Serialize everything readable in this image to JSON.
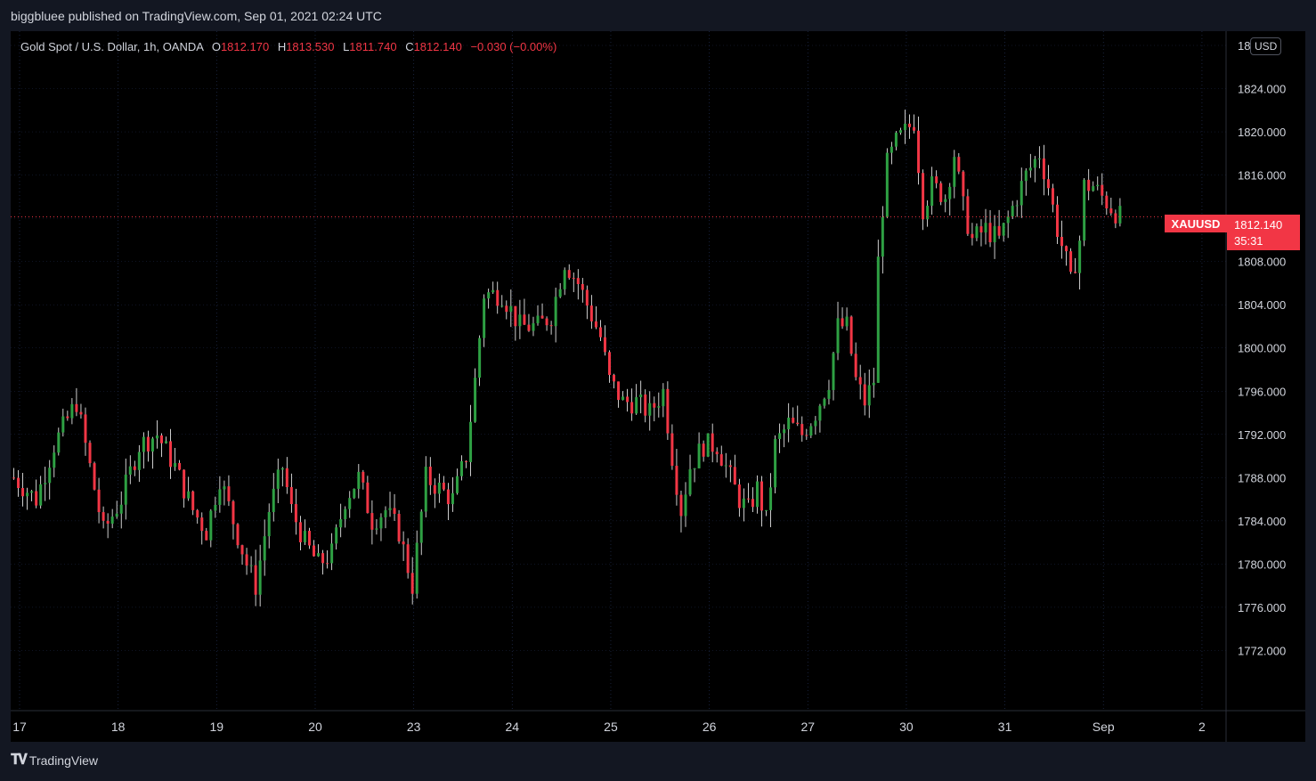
{
  "header": {
    "published_text": "biggbluee published on TradingView.com, Sep 01, 2021 02:24 UTC"
  },
  "legend": {
    "symbol": "Gold Spot / U.S. Dollar, 1h, OANDA",
    "open_label": "O",
    "open": "1812.170",
    "high_label": "H",
    "high": "1813.530",
    "low_label": "L",
    "low": "1811.740",
    "close_label": "C",
    "close": "1812.140",
    "change": "−0.030 (−0.00%)"
  },
  "currency_button": "USD",
  "price_tag": {
    "symbol": "XAUUSD",
    "price": "1812.140",
    "countdown": "35:31"
  },
  "footer": {
    "brand": "TradingView"
  },
  "colors": {
    "background": "#000000",
    "up": "#26a69a",
    "up_candle": "#2ea043",
    "down": "#f23645",
    "wick": "#ffffff",
    "grid": "#1e2a4a",
    "price_line": "#f23645"
  },
  "chart_data": {
    "type": "candlestick",
    "title": "Gold Spot / U.S. Dollar, 1h, OANDA",
    "ylim": [
      1768,
      1828
    ],
    "y_ticks": [
      "1772.000",
      "1776.000",
      "1780.000",
      "1784.000",
      "1788.000",
      "1792.000",
      "1796.000",
      "1800.000",
      "1804.000",
      "1808.000",
      "1812.000",
      "1816.000",
      "1820.000",
      "1824.000",
      "18"
    ],
    "x_ticks": [
      {
        "label": "17",
        "i": 0
      },
      {
        "label": "18",
        "i": 22
      },
      {
        "label": "19",
        "i": 44
      },
      {
        "label": "20",
        "i": 66
      },
      {
        "label": "23",
        "i": 88
      },
      {
        "label": "24",
        "i": 110
      },
      {
        "label": "25",
        "i": 132
      },
      {
        "label": "26",
        "i": 154
      },
      {
        "label": "27",
        "i": 176
      },
      {
        "label": "30",
        "i": 198
      },
      {
        "label": "31",
        "i": 220
      },
      {
        "label": "Sep",
        "i": 242
      },
      {
        "label": "2",
        "i": 264
      }
    ],
    "current_price": 1812.14,
    "points": [
      {
        "t": 0,
        "p": 1788
      },
      {
        "t": 5,
        "p": 1786
      },
      {
        "t": 9,
        "p": 1791
      },
      {
        "t": 14,
        "p": 1795
      },
      {
        "t": 17,
        "p": 1789
      },
      {
        "t": 20,
        "p": 1783
      },
      {
        "t": 24,
        "p": 1786
      },
      {
        "t": 28,
        "p": 1791
      },
      {
        "t": 32,
        "p": 1792
      },
      {
        "t": 36,
        "p": 1789
      },
      {
        "t": 40,
        "p": 1785
      },
      {
        "t": 43,
        "p": 1783
      },
      {
        "t": 46,
        "p": 1788
      },
      {
        "t": 49,
        "p": 1784
      },
      {
        "t": 52,
        "p": 1780
      },
      {
        "t": 54,
        "p": 1778
      },
      {
        "t": 57,
        "p": 1785
      },
      {
        "t": 60,
        "p": 1789
      },
      {
        "t": 62,
        "p": 1785
      },
      {
        "t": 65,
        "p": 1782
      },
      {
        "t": 68,
        "p": 1780
      },
      {
        "t": 71,
        "p": 1781
      },
      {
        "t": 74,
        "p": 1786
      },
      {
        "t": 77,
        "p": 1788
      },
      {
        "t": 80,
        "p": 1784
      },
      {
        "t": 83,
        "p": 1785
      },
      {
        "t": 86,
        "p": 1783
      },
      {
        "t": 89,
        "p": 1778
      },
      {
        "t": 92,
        "p": 1788
      },
      {
        "t": 95,
        "p": 1787
      },
      {
        "t": 98,
        "p": 1786
      },
      {
        "t": 101,
        "p": 1790
      },
      {
        "t": 103,
        "p": 1797
      },
      {
        "t": 105,
        "p": 1805
      },
      {
        "t": 109,
        "p": 1805
      },
      {
        "t": 113,
        "p": 1802
      },
      {
        "t": 117,
        "p": 1802
      },
      {
        "t": 120,
        "p": 1803
      },
      {
        "t": 123,
        "p": 1808
      },
      {
        "t": 126,
        "p": 1806
      },
      {
        "t": 129,
        "p": 1803
      },
      {
        "t": 131,
        "p": 1801
      },
      {
        "t": 133,
        "p": 1797
      },
      {
        "t": 136,
        "p": 1795
      },
      {
        "t": 139,
        "p": 1795
      },
      {
        "t": 142,
        "p": 1794
      },
      {
        "t": 145,
        "p": 1796
      },
      {
        "t": 147,
        "p": 1790
      },
      {
        "t": 149,
        "p": 1785
      },
      {
        "t": 151,
        "p": 1789
      },
      {
        "t": 154,
        "p": 1791
      },
      {
        "t": 157,
        "p": 1791
      },
      {
        "t": 159,
        "p": 1789
      },
      {
        "t": 162,
        "p": 1786
      },
      {
        "t": 164,
        "p": 1785
      },
      {
        "t": 166,
        "p": 1787
      },
      {
        "t": 168,
        "p": 1784
      },
      {
        "t": 170,
        "p": 1791
      },
      {
        "t": 173,
        "p": 1793
      },
      {
        "t": 176,
        "p": 1792
      },
      {
        "t": 179,
        "p": 1794
      },
      {
        "t": 182,
        "p": 1797
      },
      {
        "t": 184,
        "p": 1802
      },
      {
        "t": 186,
        "p": 1802
      },
      {
        "t": 188,
        "p": 1797
      },
      {
        "t": 190,
        "p": 1795
      },
      {
        "t": 192,
        "p": 1797
      },
      {
        "t": 193,
        "p": 1808
      },
      {
        "t": 194,
        "p": 1813
      },
      {
        "t": 195,
        "p": 1817
      },
      {
        "t": 197,
        "p": 1819
      },
      {
        "t": 199,
        "p": 1820
      },
      {
        "t": 201,
        "p": 1821
      },
      {
        "t": 203,
        "p": 1813
      },
      {
        "t": 205,
        "p": 1815
      },
      {
        "t": 208,
        "p": 1814
      },
      {
        "t": 210,
        "p": 1818
      },
      {
        "t": 212,
        "p": 1813
      },
      {
        "t": 214,
        "p": 1810
      },
      {
        "t": 217,
        "p": 1811
      },
      {
        "t": 220,
        "p": 1810
      },
      {
        "t": 223,
        "p": 1813
      },
      {
        "t": 226,
        "p": 1816
      },
      {
        "t": 229,
        "p": 1818
      },
      {
        "t": 231,
        "p": 1815
      },
      {
        "t": 233,
        "p": 1811
      },
      {
        "t": 235,
        "p": 1808
      },
      {
        "t": 236,
        "p": 1806
      },
      {
        "t": 238,
        "p": 1810
      },
      {
        "t": 239,
        "p": 1815
      },
      {
        "t": 241,
        "p": 1815
      },
      {
        "t": 243,
        "p": 1814
      },
      {
        "t": 245,
        "p": 1813
      },
      {
        "t": 247,
        "p": 1812.14
      }
    ]
  }
}
